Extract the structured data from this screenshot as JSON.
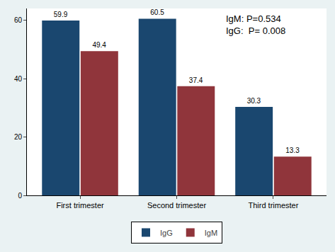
{
  "chart_data": {
    "type": "bar",
    "categories": [
      "First trimester",
      "Second trimester",
      "Third trimester"
    ],
    "series": [
      {
        "name": "IgG",
        "color": "#1a476f",
        "values": [
          59.9,
          60.5,
          30.3
        ]
      },
      {
        "name": "IgM",
        "color": "#90353b",
        "values": [
          49.4,
          37.4,
          13.3
        ]
      }
    ],
    "annotations": [
      "IgM: P=0.534",
      "IgG:  P= 0.008"
    ],
    "ylim": [
      0,
      64
    ],
    "yticks": [
      0,
      20,
      40,
      60
    ],
    "grid": false,
    "data_labels": true,
    "legend": "bottom"
  }
}
